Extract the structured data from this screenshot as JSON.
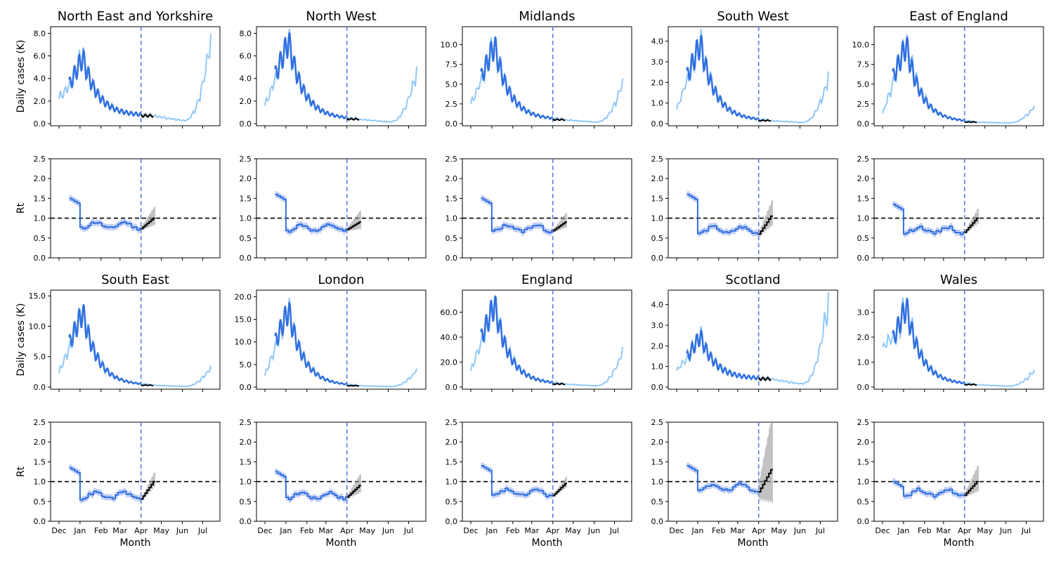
{
  "figure": {
    "type": "line",
    "rows": [
      [
        "North East and Yorkshire",
        "North West",
        "Midlands",
        "South West",
        "East of England"
      ],
      [
        "South East",
        "London",
        "England",
        "Scotland",
        "Wales"
      ]
    ],
    "ylabel_cases": "Daily cases (K)",
    "ylabel_rt": "Rt",
    "xlabel": "Month",
    "month_ticks": [
      "Dec",
      "Jan",
      "Feb",
      "Mar",
      "Apr",
      "May",
      "Jun",
      "Jul"
    ],
    "vline_month": "Apr",
    "rt_yticks": [
      "0.0",
      "0.5",
      "1.0",
      "1.5",
      "2.0",
      "2.5"
    ],
    "rt_ylim": [
      0,
      2.5
    ],
    "rt_reference_line": 1.0,
    "colors": {
      "observed": "#90c8f8",
      "fit": "#3070e0",
      "fit_band": "#90a8f0",
      "forecast": "#000000",
      "forecast_band": "#999999",
      "vline": "#5a7ae8",
      "hline": "#000000"
    }
  },
  "chart_data": [
    {
      "type": "line",
      "title": "North East and Yorkshire",
      "cases_peak": 6.2,
      "cases_ylim": [
        0,
        8.4
      ],
      "cases_yticks": [
        "0.0",
        "2.0",
        "4.0",
        "6.0",
        "8.0"
      ],
      "cases_start": 2.2,
      "cases_end": 0.7,
      "cases_tail": 8.0,
      "rt_start": 1.5,
      "rt_flat": 0.82,
      "rt_end": 1.0,
      "rt_spread": 0.25
    },
    {
      "type": "line",
      "title": "North West",
      "cases_peak": 7.7,
      "cases_ylim": [
        0,
        8.4
      ],
      "cases_yticks": [
        "0.0",
        "2.0",
        "4.0",
        "6.0",
        "8.0"
      ],
      "cases_start": 1.6,
      "cases_end": 0.4,
      "cases_tail": 5.0,
      "rt_start": 1.6,
      "rt_flat": 0.75,
      "rt_end": 0.9,
      "rt_spread": 0.25
    },
    {
      "type": "line",
      "title": "Midlands",
      "cases_peak": 10.5,
      "cases_ylim": [
        0,
        12
      ],
      "cases_yticks": [
        "0.0",
        "2.5",
        "5.0",
        "7.5",
        "10.0"
      ],
      "cases_start": 2.5,
      "cases_end": 0.5,
      "cases_tail": 5.5,
      "rt_start": 1.5,
      "rt_flat": 0.75,
      "rt_end": 0.9,
      "rt_spread": 0.2
    },
    {
      "type": "line",
      "title": "South West",
      "cases_peak": 4.1,
      "cases_ylim": [
        0,
        4.6
      ],
      "cases_yticks": [
        "0.0",
        "1.0",
        "2.0",
        "3.0",
        "4.0"
      ],
      "cases_start": 0.7,
      "cases_end": 0.15,
      "cases_tail": 2.4,
      "rt_start": 1.6,
      "rt_flat": 0.7,
      "rt_end": 1.05,
      "rt_spread": 0.35
    },
    {
      "type": "line",
      "title": "East of England",
      "cases_peak": 10.5,
      "cases_ylim": [
        0,
        12
      ],
      "cases_yticks": [
        "0.0",
        "2.5",
        "5.0",
        "7.5",
        "10.0"
      ],
      "cases_start": 1.3,
      "cases_end": 0.2,
      "cases_tail": 2.3,
      "rt_start": 1.35,
      "rt_flat": 0.7,
      "rt_end": 1.0,
      "rt_spread": 0.2
    },
    {
      "type": "line",
      "title": "South East",
      "cases_peak": 13.0,
      "cases_ylim": [
        0,
        15.6
      ],
      "cases_yticks": [
        "0.0",
        "5.0",
        "10.0",
        "15.0"
      ],
      "cases_start": 2.3,
      "cases_end": 0.3,
      "cases_tail": 3.5,
      "rt_start": 1.35,
      "rt_flat": 0.65,
      "rt_end": 1.0,
      "rt_spread": 0.2
    },
    {
      "type": "line",
      "title": "London",
      "cases_peak": 18.0,
      "cases_ylim": [
        0,
        21
      ],
      "cases_yticks": [
        "0.0",
        "5.0",
        "10.0",
        "15.0",
        "20.0"
      ],
      "cases_start": 2.5,
      "cases_end": 0.3,
      "cases_tail": 4.0,
      "rt_start": 1.25,
      "rt_flat": 0.65,
      "rt_end": 0.9,
      "rt_spread": 0.25
    },
    {
      "type": "line",
      "title": "England",
      "cases_peak": 70.0,
      "cases_ylim": [
        0,
        76
      ],
      "cases_yticks": [
        "0.0",
        "20.0",
        "40.0",
        "60.0"
      ],
      "cases_start": 13.0,
      "cases_end": 2.5,
      "cases_tail": 31.0,
      "rt_start": 1.4,
      "rt_flat": 0.72,
      "rt_end": 0.95,
      "rt_spread": 0.15
    },
    {
      "type": "line",
      "title": "Scotland",
      "cases_peak": 2.6,
      "cases_ylim": [
        0,
        4.6
      ],
      "cases_yticks": [
        "0.0",
        "1.0",
        "2.0",
        "3.0",
        "4.0"
      ],
      "cases_start": 0.8,
      "cases_end": 0.4,
      "cases_tail": 4.4,
      "rt_start": 1.4,
      "rt_flat": 0.85,
      "rt_end": 1.3,
      "rt_spread": 1.2
    },
    {
      "type": "line",
      "title": "Wales",
      "cases_peak": 3.4,
      "cases_ylim": [
        0,
        3.8
      ],
      "cases_yticks": [
        "0.0",
        "1.0",
        "2.0",
        "3.0"
      ],
      "cases_start": 1.6,
      "cases_end": 0.1,
      "cases_tail": 0.7,
      "rt_start": 1.0,
      "rt_flat": 0.72,
      "rt_end": 1.0,
      "rt_spread": 0.35
    }
  ]
}
